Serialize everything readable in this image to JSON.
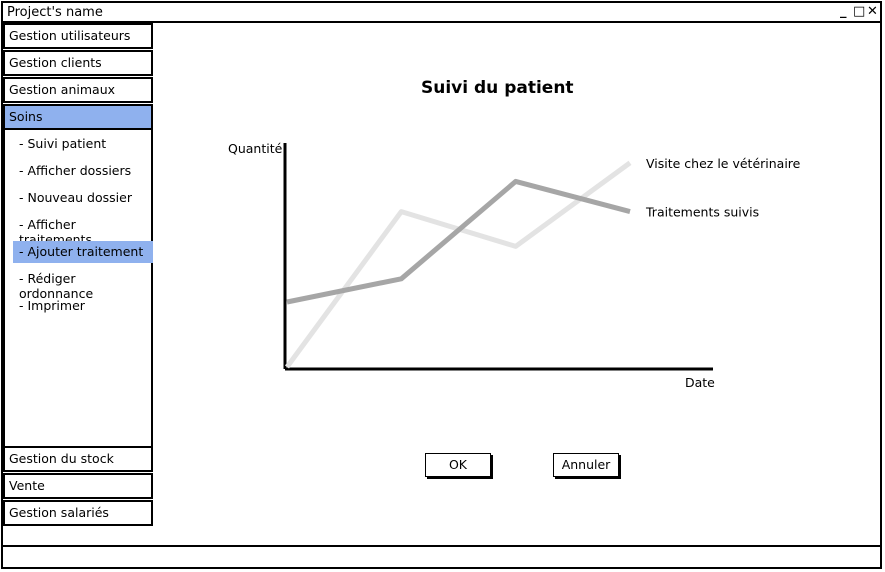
{
  "window": {
    "title": "Project's name",
    "minimize": "_",
    "maximize": "□",
    "close": "✕"
  },
  "sidebar": {
    "items": [
      {
        "label": "Gestion utilisateurs"
      },
      {
        "label": "Gestion clients"
      },
      {
        "label": "Gestion animaux"
      },
      {
        "label": "Soins",
        "active": true
      }
    ],
    "submenu": [
      {
        "label": "- Suivi patient"
      },
      {
        "label": "- Afficher dossiers"
      },
      {
        "label": "- Nouveau dossier"
      },
      {
        "label": "- Afficher traitements"
      },
      {
        "label": "- Ajouter traitement",
        "selected": true
      },
      {
        "label": "- Rédiger ordonnance"
      },
      {
        "label": "- Imprimer"
      }
    ],
    "bottom_items": [
      {
        "label": "Gestion du stock"
      },
      {
        "label": "Vente"
      },
      {
        "label": "Gestion salariés"
      }
    ],
    "highlight_color": "#8fb1ee"
  },
  "main": {
    "title": "Suivi du patient",
    "ok_label": "OK",
    "cancel_label": "Annuler"
  },
  "chart_data": {
    "type": "line",
    "title": "",
    "ylabel": "Quantité",
    "xlabel": "Date",
    "x": [
      0,
      1,
      2,
      3
    ],
    "ylim": [
      0,
      10
    ],
    "series": [
      {
        "name": "Visite chez le vétérinaire",
        "values": [
          0,
          6.7,
          5.2,
          8.8
        ],
        "color": "#e3e3e3"
      },
      {
        "name": "Traitements suivis",
        "values": [
          2.8,
          3.8,
          8.0,
          6.7
        ],
        "color": "#a6a6a6"
      }
    ]
  }
}
